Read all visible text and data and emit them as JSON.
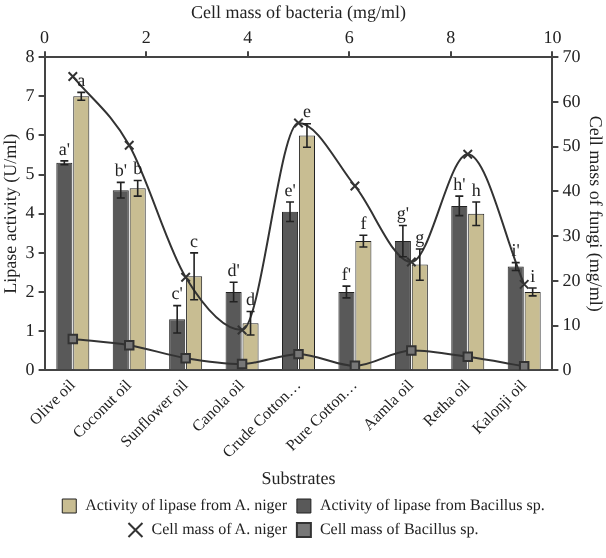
{
  "chart_data": {
    "type": "bar",
    "x2label": "Cell mass of bacteria (mg/ml)",
    "xlabel": "Substrates",
    "ylabel": "Lipase activity (U/ml)",
    "y2label": "Cell mass of fungi (mg/ml)",
    "categories": [
      "Olive oil",
      "Coconut oil",
      "Sunflower oil",
      "Canola oil",
      "Crude Cotton…",
      "Pure Cotton…",
      "Aamla oil",
      "Retha oil",
      "Kalonji oil"
    ],
    "series": [
      {
        "name": "Activity of lipase from A. niger",
        "color": "#c8bd92",
        "values": [
          7.0,
          4.65,
          2.4,
          1.2,
          6.0,
          3.3,
          2.7,
          4.0,
          2.0
        ],
        "errors": [
          0.1,
          0.2,
          0.6,
          0.3,
          0.3,
          0.15,
          0.4,
          0.3,
          0.1
        ]
      },
      {
        "name": "Activity of lipase from Bacillus sp.",
        "color": "#595959",
        "values": [
          5.3,
          4.6,
          1.3,
          2.0,
          4.05,
          2.0,
          3.3,
          4.2,
          2.65
        ],
        "errors": [
          0.05,
          0.2,
          0.35,
          0.25,
          0.25,
          0.15,
          0.4,
          0.25,
          0.1
        ]
      },
      {
        "name": "Cell mass of A. niger",
        "type": "line",
        "axis": "y2",
        "marker": "cross",
        "color": "#333333",
        "values": [
          65.7,
          50.3,
          20.8,
          9.0,
          55.3,
          41.2,
          24.2,
          48.3,
          19.2
        ]
      },
      {
        "name": "Cell mass of Bacillus sp.",
        "type": "line",
        "axis": "y2",
        "marker": "square",
        "color": "#333333",
        "values": [
          7.0,
          5.6,
          2.7,
          1.4,
          3.6,
          1.0,
          4.4,
          3.0,
          0.9
        ]
      }
    ],
    "ylim": [
      0,
      8
    ],
    "yticks": [
      0,
      1,
      2,
      3,
      4,
      5,
      6,
      7,
      8
    ],
    "y2lim": [
      0,
      70
    ],
    "y2ticks": [
      0,
      10,
      20,
      30,
      40,
      50,
      60,
      70
    ],
    "x2lim": [
      0,
      10
    ],
    "x2ticks": [
      0,
      2,
      4,
      6,
      8,
      10
    ],
    "grid": false,
    "legend": "bottom",
    "annotations": [
      {
        "text": "a'",
        "x": "Olive oil",
        "y": 5.3
      },
      {
        "text": "a",
        "x": "Olive oil",
        "y": 7.0
      },
      {
        "text": "b'",
        "x": "Coconut oil",
        "y": 4.6
      },
      {
        "text": "b",
        "x": "Coconut oil",
        "y": 4.65
      },
      {
        "text": "c'",
        "x": "Sunflower oil",
        "y": 1.3
      },
      {
        "text": "c",
        "x": "Sunflower oil",
        "y": 2.4
      },
      {
        "text": "d'",
        "x": "Canola oil",
        "y": 2.0
      },
      {
        "text": "d",
        "x": "Canola oil",
        "y": 1.2
      },
      {
        "text": "e'",
        "x": "Crude Cotton…",
        "y": 4.05
      },
      {
        "text": "e",
        "x": "Crude Cotton…",
        "y": 6.0
      },
      {
        "text": "f'",
        "x": "Pure Cotton…",
        "y": 2.0
      },
      {
        "text": "f",
        "x": "Pure Cotton…",
        "y": 3.3
      },
      {
        "text": "g'",
        "x": "Aamla oil",
        "y": 3.3
      },
      {
        "text": "g",
        "x": "Aamla oil",
        "y": 2.7
      },
      {
        "text": "h'",
        "x": "Retha oil",
        "y": 4.2
      },
      {
        "text": "h",
        "x": "Retha oil",
        "y": 4.0
      },
      {
        "text": "i'",
        "x": "Kalonji oil",
        "y": 2.65
      },
      {
        "text": "i",
        "x": "Kalonji oil",
        "y": 2.0
      }
    ]
  }
}
